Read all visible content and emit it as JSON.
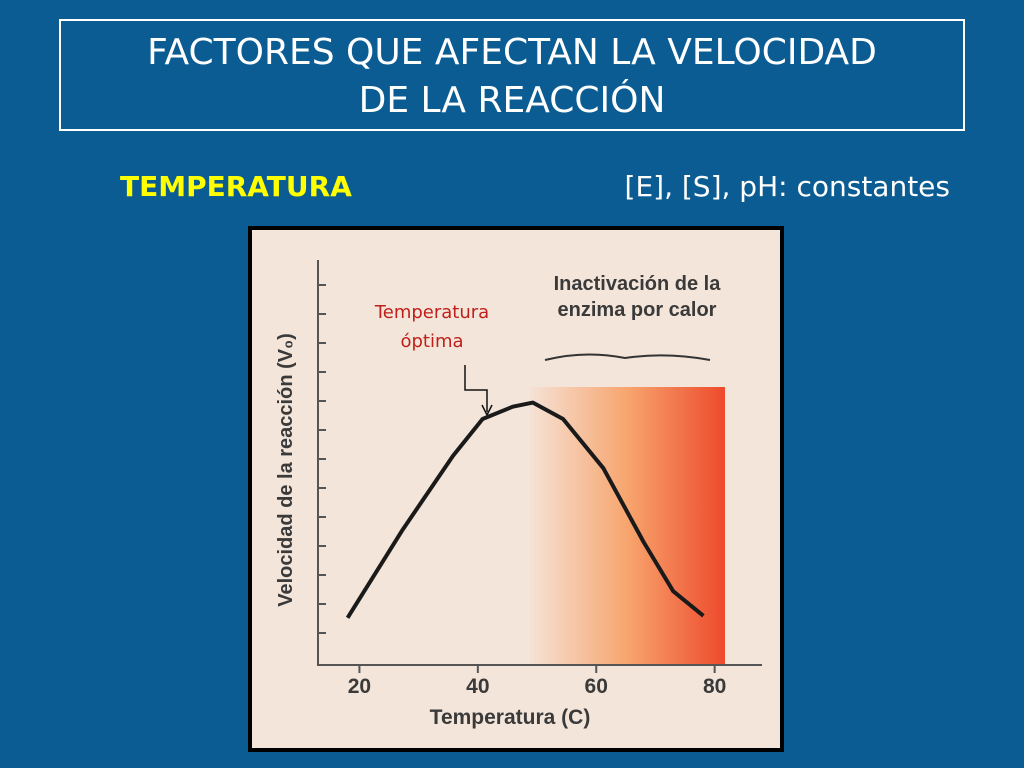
{
  "slide": {
    "title_lines": [
      "FACTORES QUE AFECTAN LA VELOCIDAD",
      "DE LA REACCIÓN"
    ],
    "section": "TEMPERATURA",
    "conditions": "[E], [S], pH: constantes"
  },
  "chart_data": {
    "type": "line",
    "x_label": "Temperatura (C)",
    "y_label": "Velocidad de la reacción (V₀)",
    "annotations": {
      "optimum": [
        "Temperatura",
        "óptima"
      ],
      "inactivation": [
        "Inactivación de la",
        "enzima por calor"
      ]
    },
    "xlim": [
      13,
      88
    ],
    "xticks": [
      20,
      40,
      60,
      80
    ],
    "ylim": [
      0,
      10
    ],
    "series": [
      {
        "color": "#1a1a1a",
        "x": [
          18,
          27.3,
          35.8,
          40.8,
          45.9,
          49.3,
          54.4,
          61.2,
          68,
          73,
          78.1
        ],
        "values": [
          1.15,
          3.3,
          5.1,
          6.0,
          6.3,
          6.4,
          6.0,
          4.8,
          3.0,
          1.8,
          1.2
        ]
      }
    ]
  }
}
